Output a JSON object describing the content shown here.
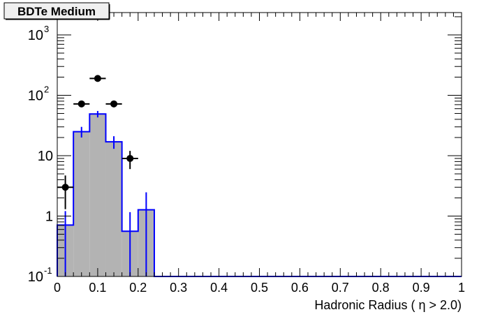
{
  "chart_data": {
    "type": "bar",
    "title": "BDTe Medium",
    "xlabel": "Hadronic Radius ( η > 2.0)",
    "ylabel": "",
    "xlim": [
      0,
      1
    ],
    "ylim": [
      0.1,
      2300
    ],
    "yscale": "log",
    "grid": false,
    "x_ticks": [
      "0",
      "0.1",
      "0.2",
      "0.3",
      "0.4",
      "0.5",
      "0.6",
      "0.7",
      "0.8",
      "0.9",
      "1"
    ],
    "y_ticks": [
      {
        "base": "10",
        "exp": "-1",
        "v": 0.1
      },
      {
        "base": "1",
        "exp": "",
        "v": 1
      },
      {
        "base": "10",
        "exp": "",
        "v": 10
      },
      {
        "base": "10",
        "exp": "2",
        "v": 100
      },
      {
        "base": "10",
        "exp": "3",
        "v": 1000
      }
    ],
    "histogram": {
      "bin_edges": [
        0,
        0.04,
        0.08,
        0.12,
        0.16,
        0.2,
        0.24
      ],
      "values": [
        0.71,
        25,
        49,
        17,
        0.56,
        1.27
      ],
      "err_low": [
        0.71,
        5,
        6,
        4,
        0.56,
        1.27
      ],
      "err_high": [
        0.5,
        5,
        6,
        4,
        0.6,
        1.2
      ],
      "fill": "#b3b3b3",
      "line": "#0000ff"
    },
    "points": {
      "x": [
        0.02,
        0.06,
        0.1,
        0.14,
        0.18
      ],
      "y": [
        3,
        72,
        190,
        72,
        9
      ],
      "err": [
        1.7,
        8.5,
        14,
        8.5,
        3
      ],
      "xerr": 0.02,
      "color": "#000000"
    }
  }
}
